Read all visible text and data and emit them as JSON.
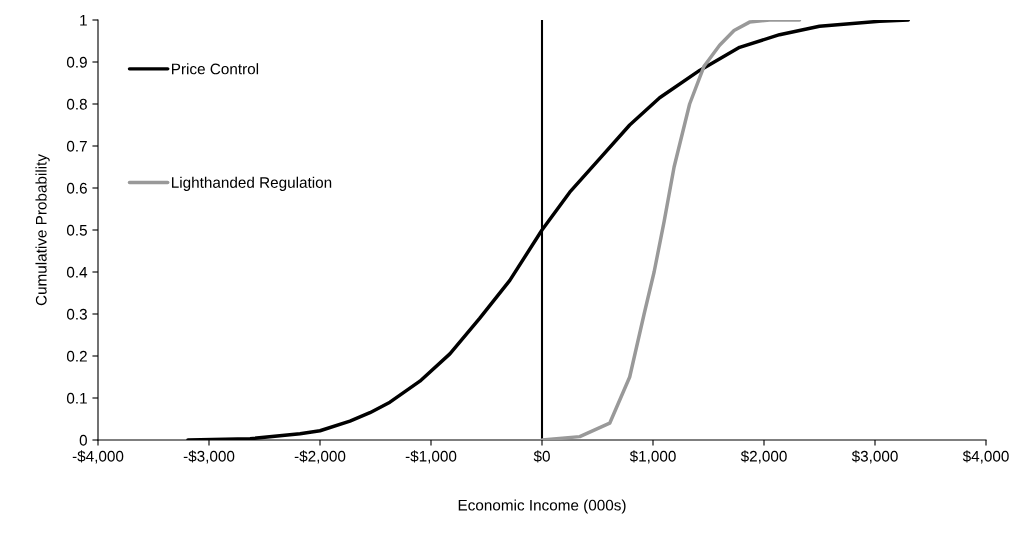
{
  "chart_data": {
    "type": "line",
    "xlabel": "Economic Income (000s)",
    "ylabel": "Cumulative Probability",
    "series": [
      {
        "name": "Price Control",
        "color": "#000000",
        "x": [
          -3190,
          -2630,
          -2180,
          -2000,
          -1730,
          -1550,
          -1370,
          -1100,
          -830,
          -560,
          -290,
          0,
          250,
          520,
          790,
          1060,
          1420,
          1780,
          2140,
          2500,
          3040,
          3300
        ],
        "values": [
          0,
          0.003,
          0.015,
          0.022,
          0.045,
          0.065,
          0.09,
          0.14,
          0.205,
          0.29,
          0.38,
          0.5,
          0.59,
          0.67,
          0.75,
          0.815,
          0.88,
          0.935,
          0.965,
          0.985,
          0.997,
          1.0
        ]
      },
      {
        "name": "Lighthanded Regulation",
        "color": "#999999",
        "x": [
          0,
          340,
          610,
          790,
          920,
          1010,
          1100,
          1190,
          1330,
          1460,
          1600,
          1730,
          1870,
          2050,
          2320
        ],
        "values": [
          0,
          0.008,
          0.04,
          0.15,
          0.3,
          0.4,
          0.52,
          0.65,
          0.8,
          0.89,
          0.94,
          0.975,
          0.995,
          1.0,
          1.0
        ]
      }
    ],
    "xlim": [
      -4000,
      4000
    ],
    "xticks": [
      {
        "value": -4000,
        "label": "-$4,000"
      },
      {
        "value": -3000,
        "label": "-$3,000"
      },
      {
        "value": -2000,
        "label": "-$2,000"
      },
      {
        "value": -1000,
        "label": "-$1,000"
      },
      {
        "value": 0,
        "label": "$0"
      },
      {
        "value": 1000,
        "label": "$1,000"
      },
      {
        "value": 2000,
        "label": "$2,000"
      },
      {
        "value": 3000,
        "label": "$3,000"
      },
      {
        "value": 4000,
        "label": "$4,000"
      }
    ],
    "ylim": [
      0,
      1
    ],
    "yticks": [
      0,
      0.1,
      0.2,
      0.3,
      0.4,
      0.5,
      0.6,
      0.7,
      0.8,
      0.9,
      1
    ],
    "ref_lines": [
      {
        "axis": "x",
        "value": 0,
        "color": "#000000"
      }
    ],
    "legend": "top left",
    "grid": false,
    "line_style": "solid"
  }
}
